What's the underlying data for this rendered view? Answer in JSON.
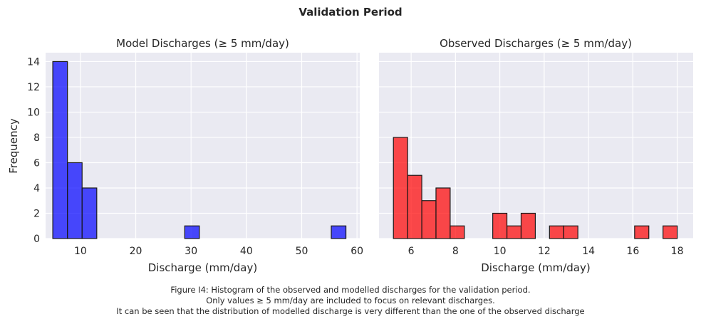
{
  "figure": {
    "suptitle": "Validation Period",
    "caption": [
      "Figure I4: Histogram of the observed and modelled discharges for the validation period.",
      "Only values ≥ 5 mm/day are included to focus on relevant discharges.",
      "It can be seen that the distribution of modelled discharge is very different than the one of the observed discharge"
    ],
    "colors": {
      "model": "#0000ff",
      "observed": "#ff0000",
      "edge": "#1a1a1a",
      "panel_bg": "#eaeaf2",
      "grid": "#ffffff"
    }
  },
  "chart_data": [
    {
      "type": "bar",
      "title": "Model Discharges (≥ 5 mm/day)",
      "xlabel": "Discharge (mm/day)",
      "ylabel": "Frequency",
      "xlim": [
        3.7,
        60.5
      ],
      "ylim": [
        0,
        14.7
      ],
      "xticks": [
        10,
        20,
        30,
        40,
        50,
        60
      ],
      "yticks": [
        0,
        2,
        4,
        6,
        8,
        10,
        12,
        14
      ],
      "bins": [
        {
          "x0": 5.0,
          "x1": 7.65,
          "count": 14
        },
        {
          "x0": 7.65,
          "x1": 10.3,
          "count": 6
        },
        {
          "x0": 10.3,
          "x1": 12.95,
          "count": 4
        },
        {
          "x0": 28.85,
          "x1": 31.5,
          "count": 1
        },
        {
          "x0": 55.35,
          "x1": 58.0,
          "count": 1
        }
      ]
    },
    {
      "type": "bar",
      "title": "Observed Discharges (≥ 5 mm/day)",
      "xlabel": "Discharge (mm/day)",
      "ylabel": "",
      "xlim": [
        4.55,
        18.72
      ],
      "ylim": [
        0,
        14.7
      ],
      "xticks": [
        6,
        8,
        10,
        12,
        14,
        16,
        18
      ],
      "yticks": [
        0,
        2,
        4,
        6,
        8,
        10,
        12,
        14
      ],
      "bins": [
        {
          "x0": 5.2,
          "x1": 5.84,
          "count": 8
        },
        {
          "x0": 5.84,
          "x1": 6.48,
          "count": 5
        },
        {
          "x0": 6.48,
          "x1": 7.12,
          "count": 3
        },
        {
          "x0": 7.12,
          "x1": 7.76,
          "count": 4
        },
        {
          "x0": 7.76,
          "x1": 8.4,
          "count": 1
        },
        {
          "x0": 9.68,
          "x1": 10.32,
          "count": 2
        },
        {
          "x0": 10.32,
          "x1": 10.96,
          "count": 1
        },
        {
          "x0": 10.96,
          "x1": 11.6,
          "count": 2
        },
        {
          "x0": 12.24,
          "x1": 12.88,
          "count": 1
        },
        {
          "x0": 12.88,
          "x1": 13.52,
          "count": 1
        },
        {
          "x0": 16.08,
          "x1": 16.72,
          "count": 1
        },
        {
          "x0": 17.36,
          "x1": 18.0,
          "count": 1
        }
      ]
    }
  ]
}
